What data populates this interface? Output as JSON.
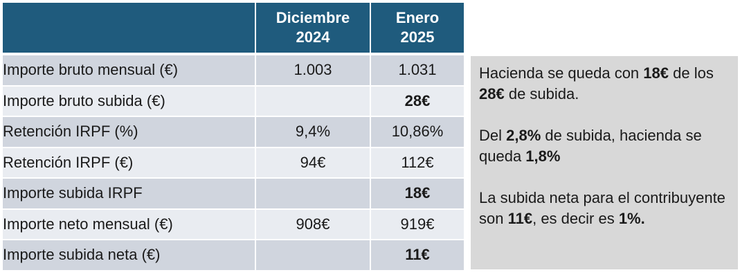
{
  "table": {
    "columns": [
      "",
      "Diciembre\n2024",
      "Enero\n2025"
    ],
    "column_lines": [
      [
        ""
      ],
      [
        "Diciembre",
        "2024"
      ],
      [
        "Enero",
        "2025"
      ]
    ],
    "rows": [
      {
        "label": "Importe  bruto mensual (€)",
        "dic": "1.003",
        "ene": "1.031",
        "highlight": false
      },
      {
        "label": "Importe bruto subida (€)",
        "dic": "",
        "ene": "28€",
        "highlight": true
      },
      {
        "label": "Retención IRPF (%)",
        "dic": "9,4%",
        "ene": "10,86%",
        "highlight": false
      },
      {
        "label": "Retención IRPF (€)",
        "dic": "94€",
        "ene": "112€",
        "highlight": false
      },
      {
        "label": "Importe subida IRPF",
        "dic": "",
        "ene": "18€",
        "highlight": true
      },
      {
        "label": "Importe neto mensual (€)",
        "dic": "908€",
        "ene": "919€",
        "highlight": false
      },
      {
        "label": "Importe subida neta (€)",
        "dic": "",
        "ene": "11€",
        "highlight": true
      }
    ]
  },
  "note": {
    "paragraphs": [
      {
        "runs": [
          {
            "text": "Hacienda se queda con ",
            "bold": false
          },
          {
            "text": "18€",
            "bold": true
          },
          {
            "text": " de los ",
            "bold": false
          },
          {
            "text": "28€",
            "bold": true
          },
          {
            "text": " de subida.",
            "bold": false
          }
        ]
      },
      {
        "runs": [
          {
            "text": "Del ",
            "bold": false
          },
          {
            "text": "2,8%",
            "bold": true
          },
          {
            "text": " de subida, hacienda se queda ",
            "bold": false
          },
          {
            "text": "1,8%",
            "bold": true
          }
        ]
      },
      {
        "runs": [
          {
            "text": "La subida neta para el contribuyente son ",
            "bold": false
          },
          {
            "text": "11€",
            "bold": true
          },
          {
            "text": ", es decir  es ",
            "bold": false
          },
          {
            "text": "1%.",
            "bold": true
          }
        ]
      }
    ]
  },
  "colors": {
    "header_bg": "#1f5b7d",
    "row_odd": "#d0d5de",
    "row_even": "#e9ecf1",
    "highlight_text": "#e00000",
    "note_bg": "#d8d8d8"
  }
}
